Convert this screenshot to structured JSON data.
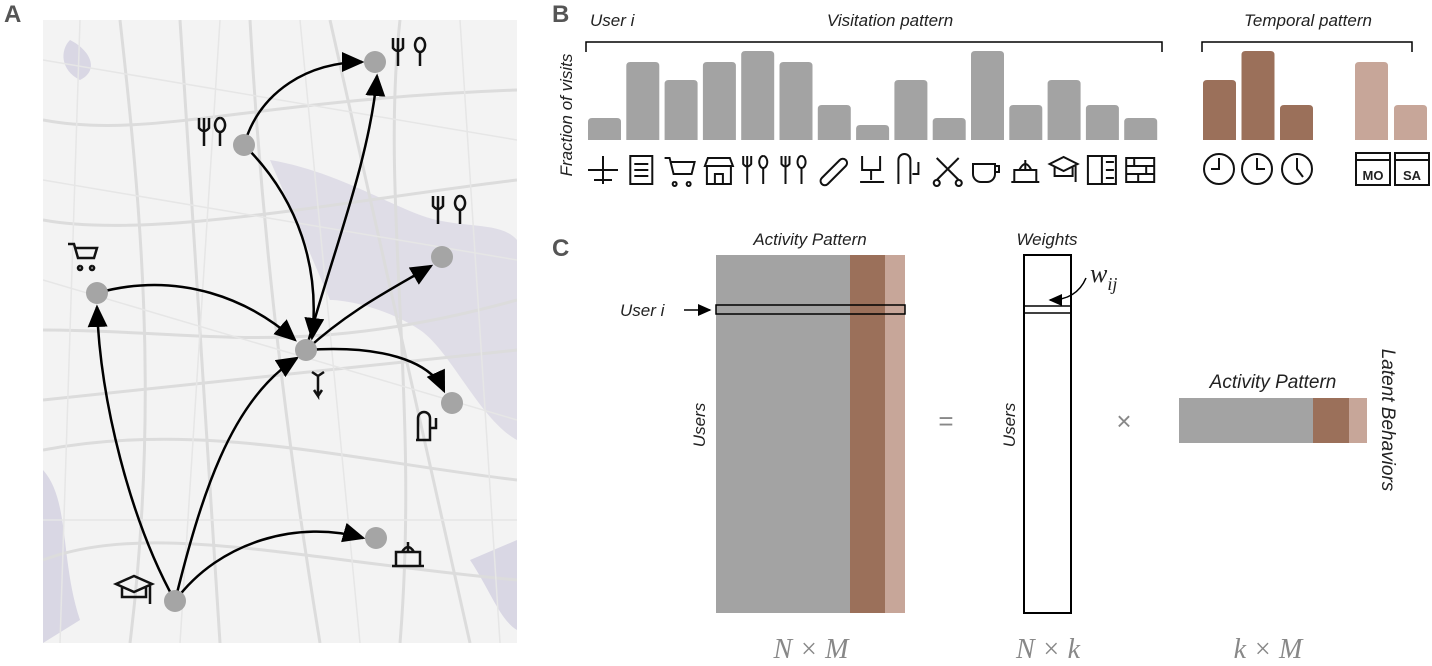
{
  "panel_a": {
    "label": "A"
  },
  "panel_b": {
    "label": "B",
    "user_label": "User i",
    "visitation_title": "Visitation pattern",
    "temporal_title": "Temporal pattern",
    "y_label": "Fraction of visits",
    "visitation_values": [
      22,
      78,
      60,
      78,
      89,
      78,
      35,
      15,
      60,
      22,
      89,
      35,
      60,
      35,
      22
    ],
    "visitation_color": "#a3a3a3",
    "hour_values": [
      60,
      89,
      35
    ],
    "hour_color": "#9b705a",
    "day_values": [
      78,
      35
    ],
    "day_color": "#c7a699",
    "day_icons": [
      "MO",
      "SA"
    ]
  },
  "panel_c": {
    "label": "C",
    "activity_title": "Activity Pattern",
    "weights_title": "Weights",
    "weight_symbol": "w",
    "weight_subscript": "ij",
    "row_label": "User i",
    "users_label": "Users",
    "equals": "=",
    "times": "×",
    "latent_title": "Activity Pattern",
    "latent_label": "Latent Behaviors",
    "dims": [
      "N × M",
      "N × k",
      "k × M"
    ]
  }
}
